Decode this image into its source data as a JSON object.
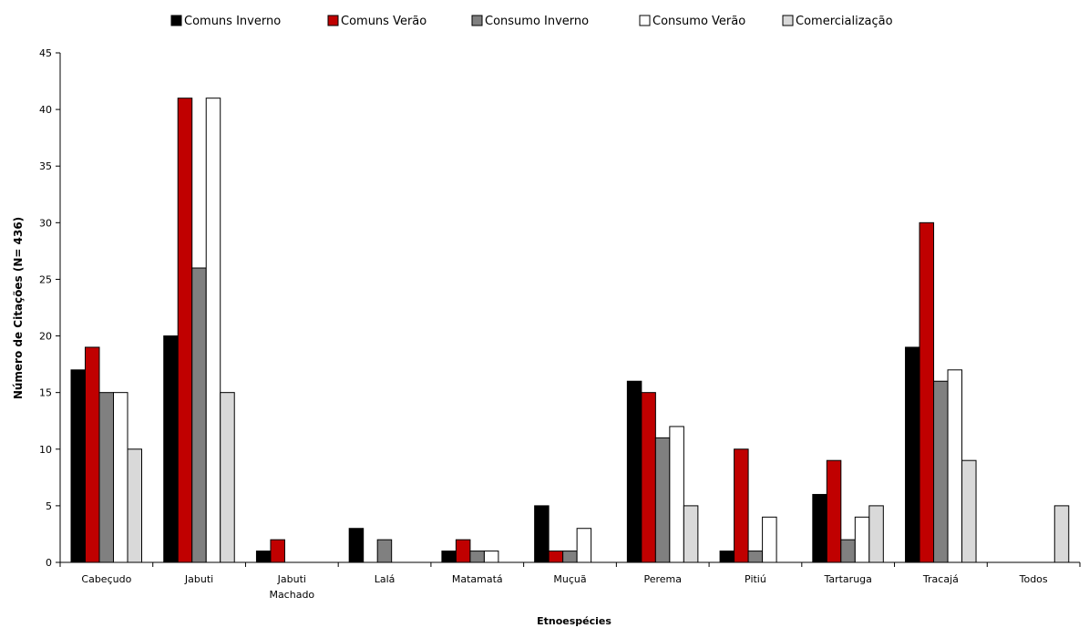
{
  "chart_data": {
    "type": "bar",
    "title": "",
    "xlabel": "Etnoespécies",
    "ylabel": "Número de Citações (N= 436)",
    "ylim": [
      0,
      45
    ],
    "yticks": [
      0,
      5,
      10,
      15,
      20,
      25,
      30,
      35,
      40,
      45
    ],
    "grid": false,
    "legend_position": "top",
    "categories": [
      [
        "Cabeçudo"
      ],
      [
        "Jabuti"
      ],
      [
        "Jabuti",
        "Machado"
      ],
      [
        "Lalá"
      ],
      [
        "Matamatá"
      ],
      [
        "Muçuã"
      ],
      [
        "Perema"
      ],
      [
        "Pitiú"
      ],
      [
        "Tartaruga"
      ],
      [
        "Tracajá"
      ],
      [
        "Todos"
      ]
    ],
    "series": [
      {
        "name": "Comuns Inverno",
        "color": "#000000",
        "values": [
          17,
          20,
          1,
          3,
          1,
          5,
          16,
          1,
          6,
          19,
          0
        ]
      },
      {
        "name": "Comuns Verão",
        "color": "#c00000",
        "values": [
          19,
          41,
          2,
          0,
          2,
          1,
          15,
          10,
          9,
          30,
          0
        ]
      },
      {
        "name": "Consumo Inverno",
        "color": "#808080",
        "values": [
          15,
          26,
          0,
          2,
          1,
          1,
          11,
          1,
          2,
          16,
          0
        ]
      },
      {
        "name": "Consumo Verão",
        "color": "#ffffff",
        "values": [
          15,
          41,
          0,
          0,
          1,
          3,
          12,
          4,
          4,
          17,
          0
        ]
      },
      {
        "name": "Comercialização",
        "color": "#d9d9d9",
        "values": [
          10,
          15,
          0,
          0,
          0,
          0,
          5,
          0,
          5,
          9,
          5
        ]
      }
    ]
  }
}
